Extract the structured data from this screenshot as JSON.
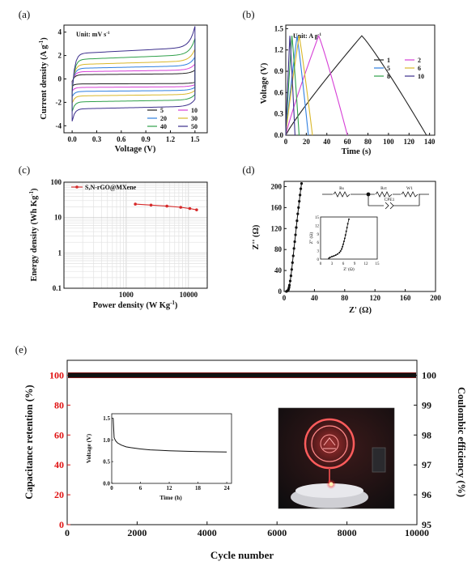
{
  "chart_data": [
    {
      "panel": "(a)",
      "type": "line",
      "subtitle": "Unit: mV s",
      "subtitle_sup": "-1",
      "xlabel": "Voltage (V)",
      "ylabel": "Current density (A g",
      "ylabel_sup": "-1",
      "ylabel_close": ")",
      "xlim": [
        -0.1,
        1.65
      ],
      "ylim": [
        -4.6,
        4.6
      ],
      "xticks": [
        "0.0",
        "0.3",
        "0.6",
        "0.9",
        "1.2",
        "1.5"
      ],
      "yticks": [
        "-4",
        "-2",
        "0",
        "2",
        "4"
      ],
      "legend": "bottom-right",
      "series": [
        {
          "name": "5",
          "color": "#222222",
          "amplitude": 0.5
        },
        {
          "name": "10",
          "color": "#d63fd6",
          "amplitude": 0.85
        },
        {
          "name": "20",
          "color": "#2f7fe0",
          "amplitude": 1.25
        },
        {
          "name": "30",
          "color": "#d9b72a",
          "amplitude": 1.7
        },
        {
          "name": "40",
          "color": "#2fa04a",
          "amplitude": 2.3
        },
        {
          "name": "50",
          "color": "#3c2f8c",
          "amplitude": 3.0
        }
      ]
    },
    {
      "panel": "(b)",
      "type": "line",
      "subtitle": "Unit: A g",
      "subtitle_sup": "-1",
      "xlabel": "Time (s)",
      "ylabel": "Voltage (V)",
      "xlim": [
        0,
        145
      ],
      "ylim": [
        0,
        1.55
      ],
      "xticks": [
        "0",
        "20",
        "40",
        "60",
        "80",
        "100",
        "120",
        "140"
      ],
      "yticks": [
        "0.0",
        "0.3",
        "0.6",
        "0.9",
        "1.2",
        "1.5"
      ],
      "legend": "top-right",
      "series": [
        {
          "name": "1",
          "color": "#222222",
          "peak_t": 74,
          "end_t": 137
        },
        {
          "name": "2",
          "color": "#d63fd6",
          "peak_t": 32,
          "end_t": 60
        },
        {
          "name": "5",
          "color": "#2f7fe0",
          "peak_t": 11,
          "end_t": 22
        },
        {
          "name": "6",
          "color": "#d9b72a",
          "peak_t": 13,
          "end_t": 26
        },
        {
          "name": "8",
          "color": "#2fa04a",
          "peak_t": 6,
          "end_t": 13
        },
        {
          "name": "10",
          "color": "#3c2f8c",
          "peak_t": 4,
          "end_t": 9
        }
      ]
    },
    {
      "panel": "(c)",
      "type": "line",
      "xlabel": "Power density (W Kg",
      "xlabel_sup": "-1",
      "xlabel_close": ")",
      "ylabel": "Energy density (Wh Kg",
      "ylabel_sup": "-1",
      "ylabel_close": ")",
      "xscale": "log",
      "yscale": "log",
      "xlim": [
        100,
        20000
      ],
      "ylim": [
        0.1,
        100
      ],
      "xticks": [
        "1000",
        "10000"
      ],
      "yticks": [
        "0.1",
        "1",
        "10",
        "100"
      ],
      "grid": true,
      "legend": "top-left",
      "series": [
        {
          "name": "S,N-rGO@MXene",
          "color": "#d62a2a",
          "x": [
            1400,
            2500,
            4500,
            7500,
            10500,
            13500
          ],
          "y": [
            24,
            22.5,
            21,
            19.5,
            18,
            16.5
          ]
        }
      ]
    },
    {
      "panel": "(d)",
      "type": "scatter",
      "xlabel": "Z' (Ω)",
      "ylabel": "Z'' (Ω)",
      "xlim": [
        0,
        200
      ],
      "ylim": [
        0,
        210
      ],
      "xticks": [
        "0",
        "40",
        "80",
        "120",
        "160",
        "200"
      ],
      "yticks": [
        "0",
        "40",
        "80",
        "120",
        "160",
        "200"
      ],
      "circuit_labels": [
        "Rs",
        "Rct",
        "W1",
        "CPE1"
      ],
      "series": [
        {
          "name": "",
          "color": "#111111",
          "x": [
            3,
            4,
            5,
            5.5,
            6,
            6.5,
            7,
            8,
            9,
            10,
            11,
            12,
            13,
            14,
            15,
            16,
            17,
            18,
            19,
            20,
            21,
            22,
            23
          ],
          "y": [
            0,
            1,
            2,
            3,
            5,
            8,
            12,
            20,
            30,
            42,
            55,
            68,
            82,
            95,
            108,
            122,
            135,
            148,
            160,
            172,
            184,
            196,
            206
          ]
        }
      ],
      "inset": {
        "xlabel": "Z' (Ω)",
        "ylabel": "Z'' (Ω)",
        "xlim": [
          0,
          15
        ],
        "ylim": [
          0,
          15
        ],
        "xticks": [
          "0",
          "3",
          "6",
          "9",
          "12",
          "15"
        ],
        "yticks": [
          "0",
          "3",
          "6",
          "9",
          "12",
          "15"
        ],
        "x": [
          2.2,
          2.5,
          3,
          3.5,
          4,
          4.5,
          5,
          5.3,
          5.6,
          5.8,
          6.0,
          6.2,
          6.4,
          6.6,
          6.8,
          7.0,
          7.2,
          7.5
        ],
        "y": [
          0.3,
          0.6,
          0.9,
          1.1,
          1.4,
          1.8,
          2.3,
          2.9,
          3.6,
          4.4,
          5.3,
          6.3,
          7.4,
          8.6,
          9.9,
          11.2,
          12.6,
          14.2
        ]
      }
    },
    {
      "panel": "(e)",
      "type": "line",
      "xlabel": "Cycle number",
      "ylabel": "Capacitance retention (%)",
      "y2label": "Coulombic efficiency (%)",
      "xlim": [
        0,
        10000
      ],
      "ylim": [
        0,
        110
      ],
      "y2lim": [
        95,
        100.5
      ],
      "xticks": [
        "0",
        "2000",
        "4000",
        "6000",
        "8000",
        "10000"
      ],
      "yticks": [
        "0",
        "20",
        "40",
        "60",
        "80",
        "100"
      ],
      "y2ticks": [
        "95",
        "96",
        "97",
        "98",
        "99",
        "100"
      ],
      "series": [
        {
          "name": "",
          "color": "#e01010",
          "axis": "left",
          "value": 100
        },
        {
          "name": "",
          "color": "#111111",
          "axis": "right",
          "value": 100
        }
      ],
      "inset": {
        "xlabel": "Time (h)",
        "ylabel": "Voltage (V)",
        "xlim": [
          0,
          25
        ],
        "ylim": [
          0,
          1.6
        ],
        "xticks": [
          "0",
          "6",
          "12",
          "18",
          "24"
        ],
        "yticks": [
          "0.0",
          "0.5",
          "1.0",
          "1.5"
        ],
        "x": [
          0.3,
          0.5,
          0.8,
          1.2,
          2,
          3,
          4,
          6,
          8,
          10,
          12,
          15,
          18,
          21,
          24
        ],
        "y": [
          1.5,
          1.05,
          0.98,
          0.93,
          0.88,
          0.84,
          0.82,
          0.79,
          0.77,
          0.76,
          0.75,
          0.74,
          0.73,
          0.725,
          0.72
        ]
      }
    }
  ]
}
